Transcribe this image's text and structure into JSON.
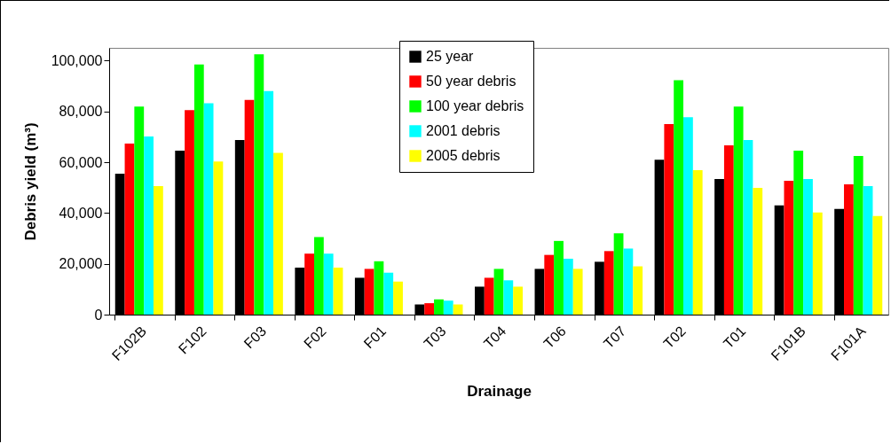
{
  "chart_data": {
    "type": "bar",
    "xlabel": "Drainage",
    "ylabel": "Debris yield (m³)",
    "categories": [
      "F102B",
      "F102",
      "F03",
      "F02",
      "F01",
      "T03",
      "T04",
      "T06",
      "T07",
      "T02",
      "T01",
      "F101B",
      "F101A"
    ],
    "series": [
      {
        "name": "25 year",
        "color": "#000000",
        "values": [
          55500,
          64500,
          68700,
          18500,
          14500,
          4000,
          11000,
          18000,
          20800,
          61000,
          53400,
          43000,
          41600
        ]
      },
      {
        "name": "50 year debris",
        "color": "#ff0000",
        "values": [
          67300,
          80500,
          84500,
          24000,
          18000,
          4500,
          14500,
          23500,
          25000,
          75000,
          66600,
          52700,
          51300
        ]
      },
      {
        "name": "100 year debris",
        "color": "#00ff00",
        "values": [
          81900,
          98500,
          102500,
          30500,
          21000,
          6000,
          18000,
          29000,
          32000,
          92300,
          81900,
          64500,
          62400
        ]
      },
      {
        "name": "2001 debris",
        "color": "#00ffff",
        "values": [
          70100,
          83200,
          88000,
          24000,
          16500,
          5500,
          13500,
          22000,
          26000,
          77700,
          68700,
          53400,
          50600
        ]
      },
      {
        "name": "2005 debris",
        "color": "#ffff00",
        "values": [
          50600,
          60300,
          63700,
          18500,
          13000,
          4000,
          11000,
          18000,
          19000,
          56900,
          49900,
          40200,
          38800
        ]
      }
    ],
    "ylim": [
      0,
      105000
    ],
    "yticks": [
      {
        "value": 0,
        "label": "0"
      },
      {
        "value": 20000,
        "label": "20,000"
      },
      {
        "value": 40000,
        "label": "40,000"
      },
      {
        "value": 60000,
        "label": "60,000"
      },
      {
        "value": 80000,
        "label": "80,000"
      },
      {
        "value": 100000,
        "label": "100,000"
      }
    ],
    "legend": "top"
  }
}
